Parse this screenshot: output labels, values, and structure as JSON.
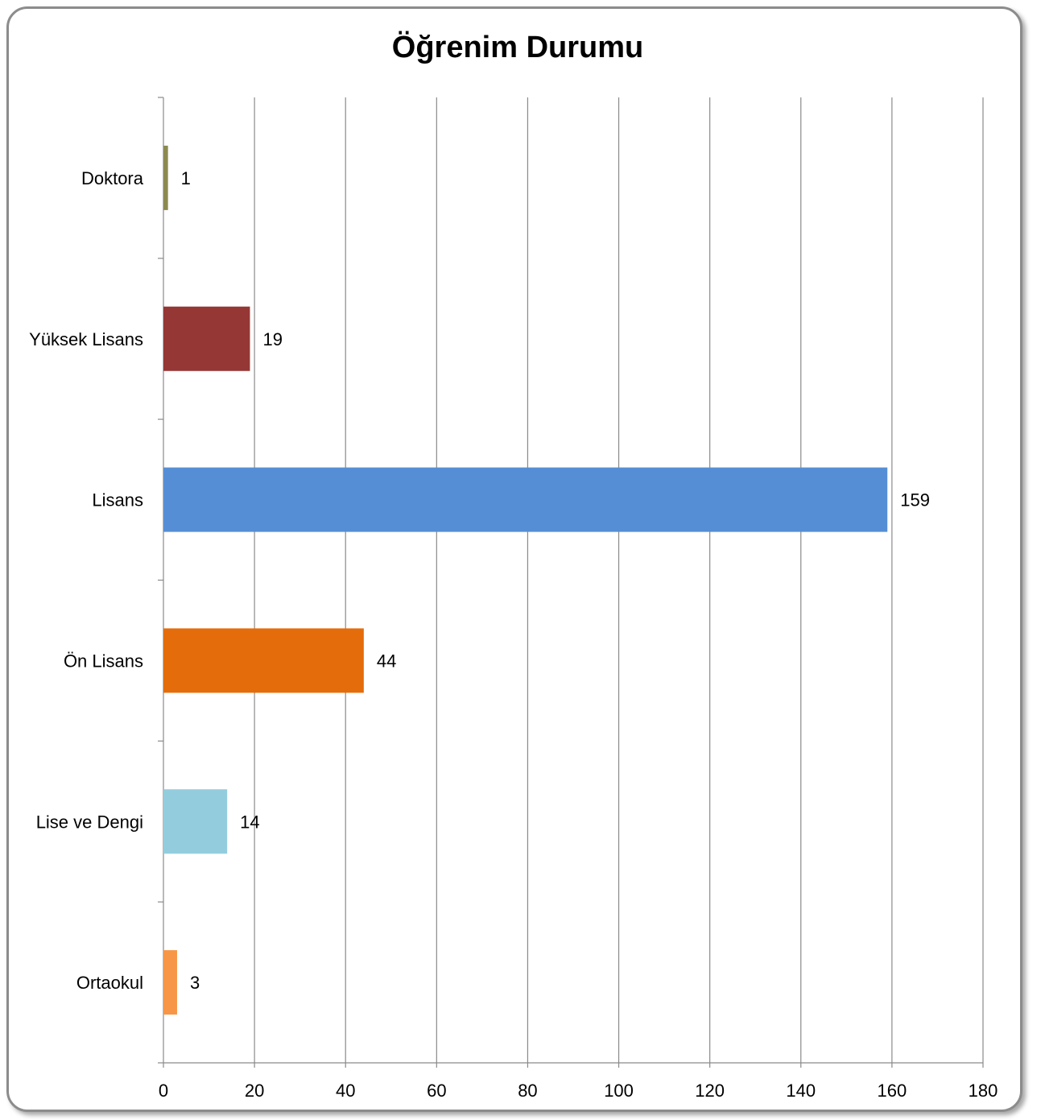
{
  "chart_data": {
    "type": "bar",
    "orientation": "horizontal",
    "title": "Öğrenim Durumu",
    "categories": [
      "Doktora",
      "Yüksek Lisans",
      "Lisans",
      "Ön Lisans",
      "Lise ve Dengi",
      "Ortaokul"
    ],
    "values": [
      1,
      19,
      159,
      44,
      14,
      3
    ],
    "data_labels": [
      "1",
      "19",
      "159",
      "44",
      "14",
      "3"
    ],
    "colors": [
      "#8c8a4e",
      "#953735",
      "#558ed5",
      "#e46c0a",
      "#93cddd",
      "#f79646"
    ],
    "xlim": [
      0,
      180
    ],
    "x_ticks": [
      "0",
      "20",
      "40",
      "60",
      "80",
      "100",
      "120",
      "140",
      "160",
      "180"
    ],
    "xlabel": "",
    "ylabel": "",
    "grid": "vertical",
    "legend": "none"
  }
}
